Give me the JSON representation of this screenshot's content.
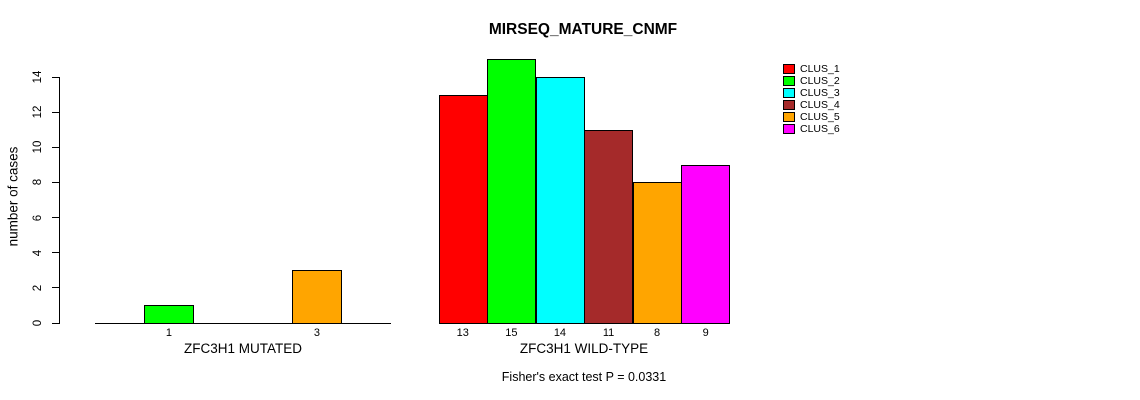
{
  "chart_data": {
    "type": "bar",
    "title": "MIRSEQ_MATURE_CNMF",
    "ylabel": "number of cases",
    "xlabel": "",
    "ylim": [
      0,
      15
    ],
    "yticks": [
      0,
      2,
      4,
      6,
      8,
      10,
      12,
      14
    ],
    "grid": false,
    "legend_position": "top-right",
    "axis_color": "#000000",
    "background_color": "#ffffff",
    "series": [
      {
        "name": "CLUS_1",
        "color": "#FF0000",
        "values": [
          0,
          13
        ]
      },
      {
        "name": "CLUS_2",
        "color": "#00FF00",
        "values": [
          1,
          15
        ]
      },
      {
        "name": "CLUS_3",
        "color": "#00FFFF",
        "values": [
          0,
          14
        ]
      },
      {
        "name": "CLUS_4",
        "color": "#A52A2A",
        "values": [
          0,
          11
        ]
      },
      {
        "name": "CLUS_5",
        "color": "#FFA500",
        "values": [
          3,
          8
        ]
      },
      {
        "name": "CLUS_6",
        "color": "#FF00FF",
        "values": [
          0,
          9
        ]
      }
    ],
    "groups": [
      {
        "label": "ZFC3H1 MUTATED",
        "values": [
          0,
          1,
          0,
          0,
          3,
          0
        ]
      },
      {
        "label": "ZFC3H1 WILD-TYPE",
        "values": [
          13,
          15,
          14,
          11,
          8,
          9
        ]
      }
    ],
    "bar_value_labels": [
      [
        "",
        "1",
        "",
        "",
        "3",
        ""
      ],
      [
        "13",
        "15",
        "14",
        "11",
        "8",
        "9"
      ]
    ],
    "annotation": "Fisher's exact test P = 0.0331"
  }
}
